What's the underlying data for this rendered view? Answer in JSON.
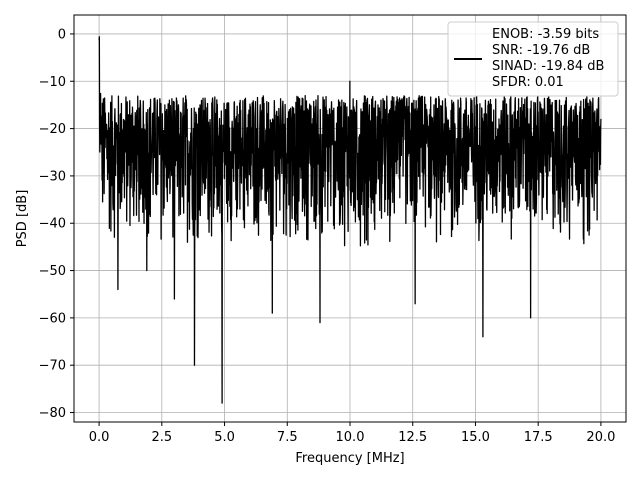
{
  "chart_data": {
    "type": "line",
    "title": "",
    "xlabel": "Frequency [MHz]",
    "ylabel": "PSD [dB]",
    "xlim": [
      -1.0,
      21.0
    ],
    "ylim": [
      -82,
      4
    ],
    "x_ticks": [
      0.0,
      2.5,
      5.0,
      7.5,
      10.0,
      12.5,
      15.0,
      17.5,
      20.0
    ],
    "x_tick_labels": [
      "0.0",
      "2.5",
      "5.0",
      "7.5",
      "10.0",
      "12.5",
      "15.0",
      "17.5",
      "20.0"
    ],
    "y_ticks": [
      0,
      -10,
      -20,
      -30,
      -40,
      -50,
      -60,
      -70,
      -80
    ],
    "y_tick_labels": [
      "0",
      "−10",
      "−20",
      "−30",
      "−40",
      "−50",
      "−60",
      "−70",
      "−80"
    ],
    "grid": true,
    "legend_position": "top-right",
    "series": [
      {
        "color": "#000000",
        "x_range": [
          0.0,
          20.0
        ],
        "points": 2000,
        "description_stats": {
          "dc_peak_db": 0,
          "upper_envelope_db": -13,
          "median_db": -27,
          "lower_envelope_db": -45,
          "spur_db": -10,
          "spur_freq_mhz": 10.0
        },
        "notable_minima": [
          {
            "x": 0.75,
            "y": -54
          },
          {
            "x": 1.9,
            "y": -50
          },
          {
            "x": 3.0,
            "y": -56
          },
          {
            "x": 3.8,
            "y": -70
          },
          {
            "x": 4.9,
            "y": -78
          },
          {
            "x": 6.9,
            "y": -59
          },
          {
            "x": 8.8,
            "y": -61
          },
          {
            "x": 12.6,
            "y": -57
          },
          {
            "x": 15.3,
            "y": -64
          },
          {
            "x": 17.2,
            "y": -60
          }
        ]
      }
    ],
    "legend_lines": [
      "ENOB: -3.59 bits",
      "SNR: -19.76 dB",
      "SINAD: -19.84 dB",
      "SFDR: 0.01"
    ]
  }
}
